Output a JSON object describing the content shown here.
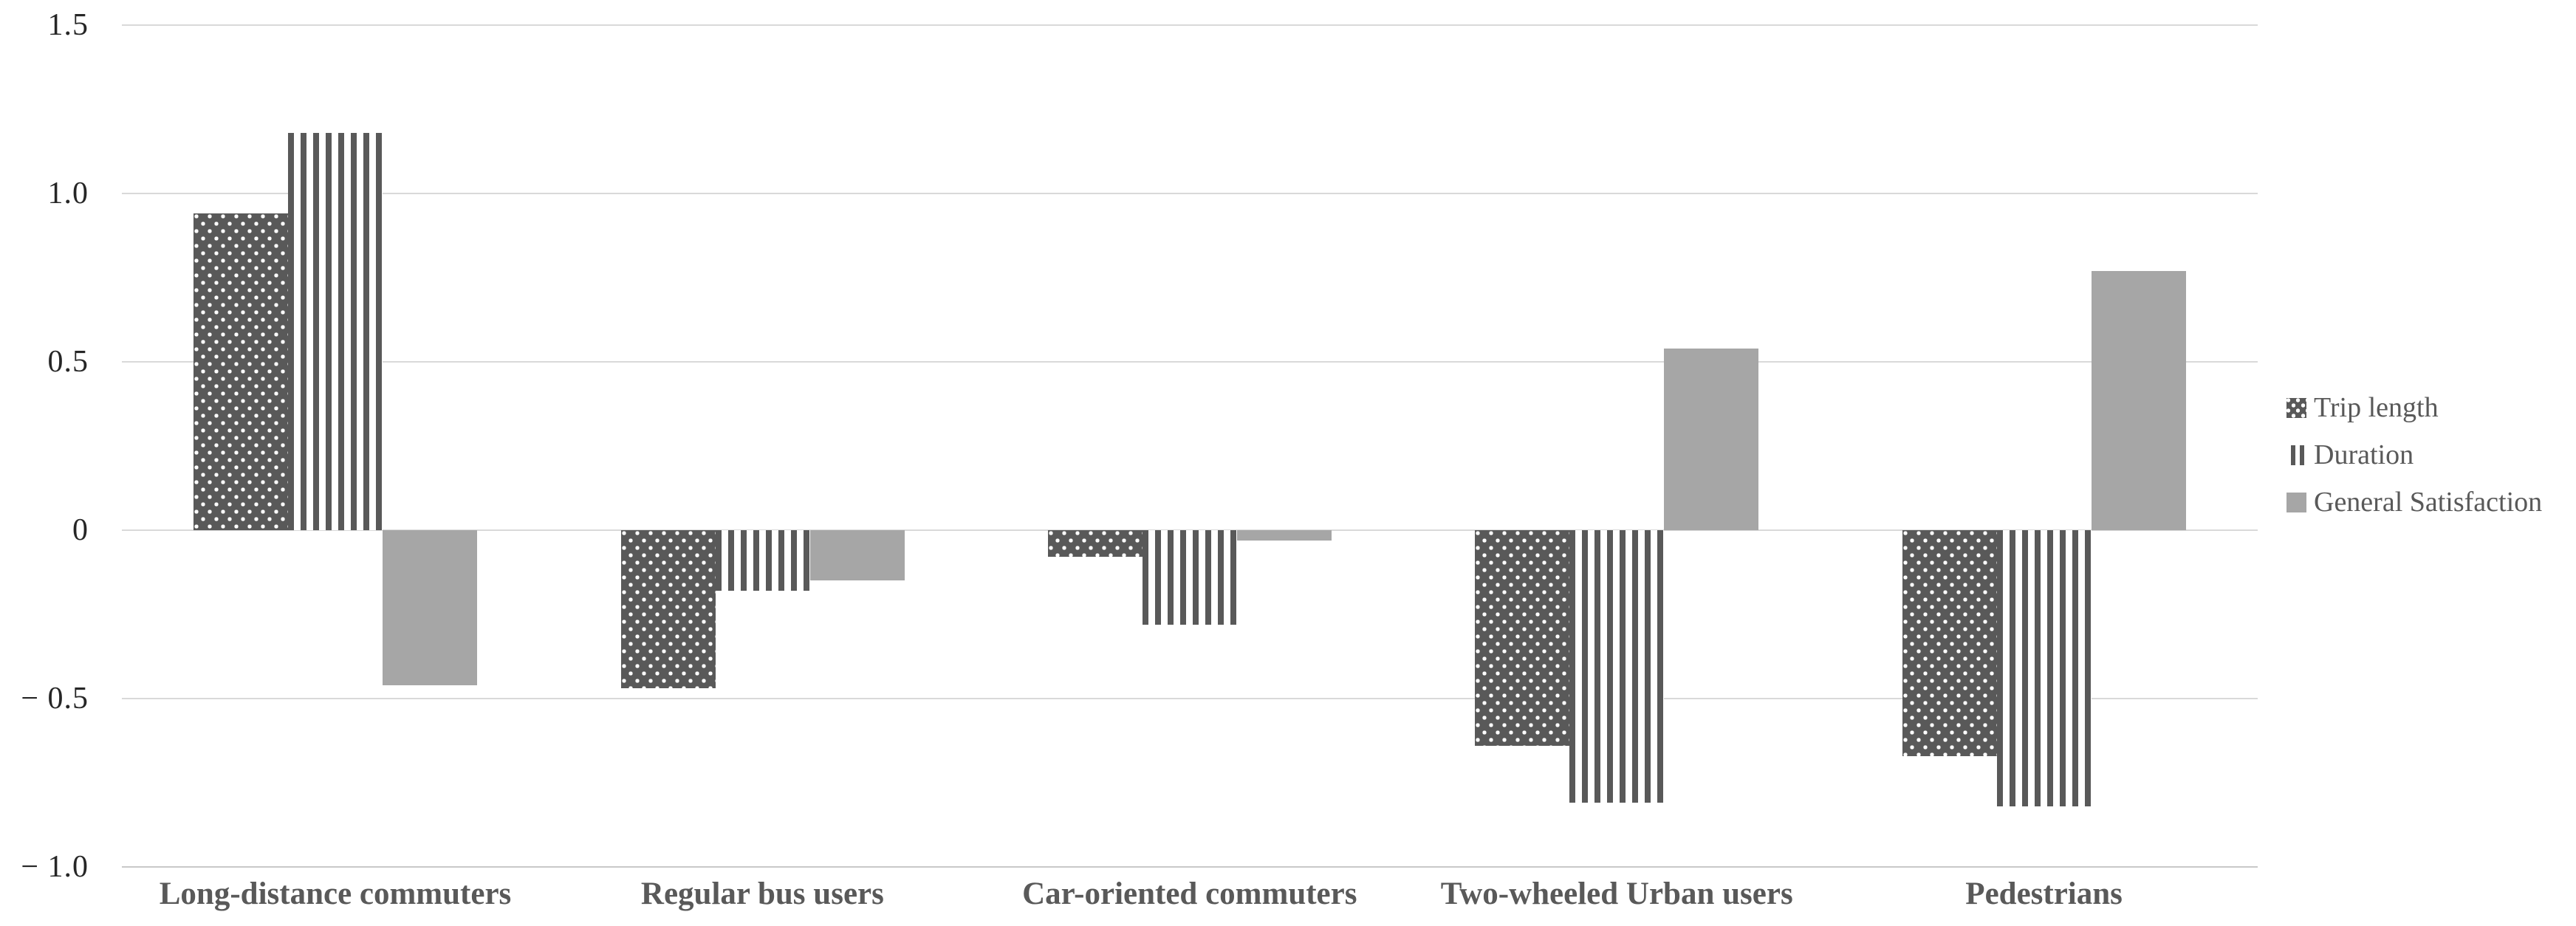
{
  "page": {
    "background": "#ffffff"
  },
  "chart_data": {
    "type": "bar",
    "title": "",
    "xlabel": "",
    "ylabel": "",
    "categories": [
      "Long-distance commuters",
      "Regular bus users",
      "Car-oriented commuters",
      "Two-wheeled Urban users",
      "Pedestrians"
    ],
    "series": [
      {
        "name": "Trip length",
        "style": "dots",
        "values": [
          0.94,
          -0.47,
          -0.08,
          -0.64,
          -0.67
        ]
      },
      {
        "name": "Duration",
        "style": "stripes",
        "values": [
          1.18,
          -0.18,
          -0.28,
          -0.81,
          -0.82
        ]
      },
      {
        "name": "General Satisfaction",
        "style": "solid",
        "values": [
          -0.46,
          -0.15,
          -0.03,
          0.54,
          0.77
        ]
      }
    ],
    "ylim": [
      -1.0,
      1.5
    ],
    "y_ticks": [
      {
        "v": 1.5,
        "label": "1.5"
      },
      {
        "v": 1.0,
        "label": "1.0"
      },
      {
        "v": 0.5,
        "label": "0.5"
      },
      {
        "v": 0,
        "label": "0"
      },
      {
        "v": -0.5,
        "label": "− 0.5"
      },
      {
        "v": -1.0,
        "label": "− 1.0"
      }
    ],
    "grid": true,
    "legend_position": "right",
    "colors": {
      "dark_series": "#595959",
      "solid_series": "#a6a6a6",
      "gridline": "#d9d9d9",
      "tick_text": "#262626",
      "label_text": "#595959"
    }
  }
}
